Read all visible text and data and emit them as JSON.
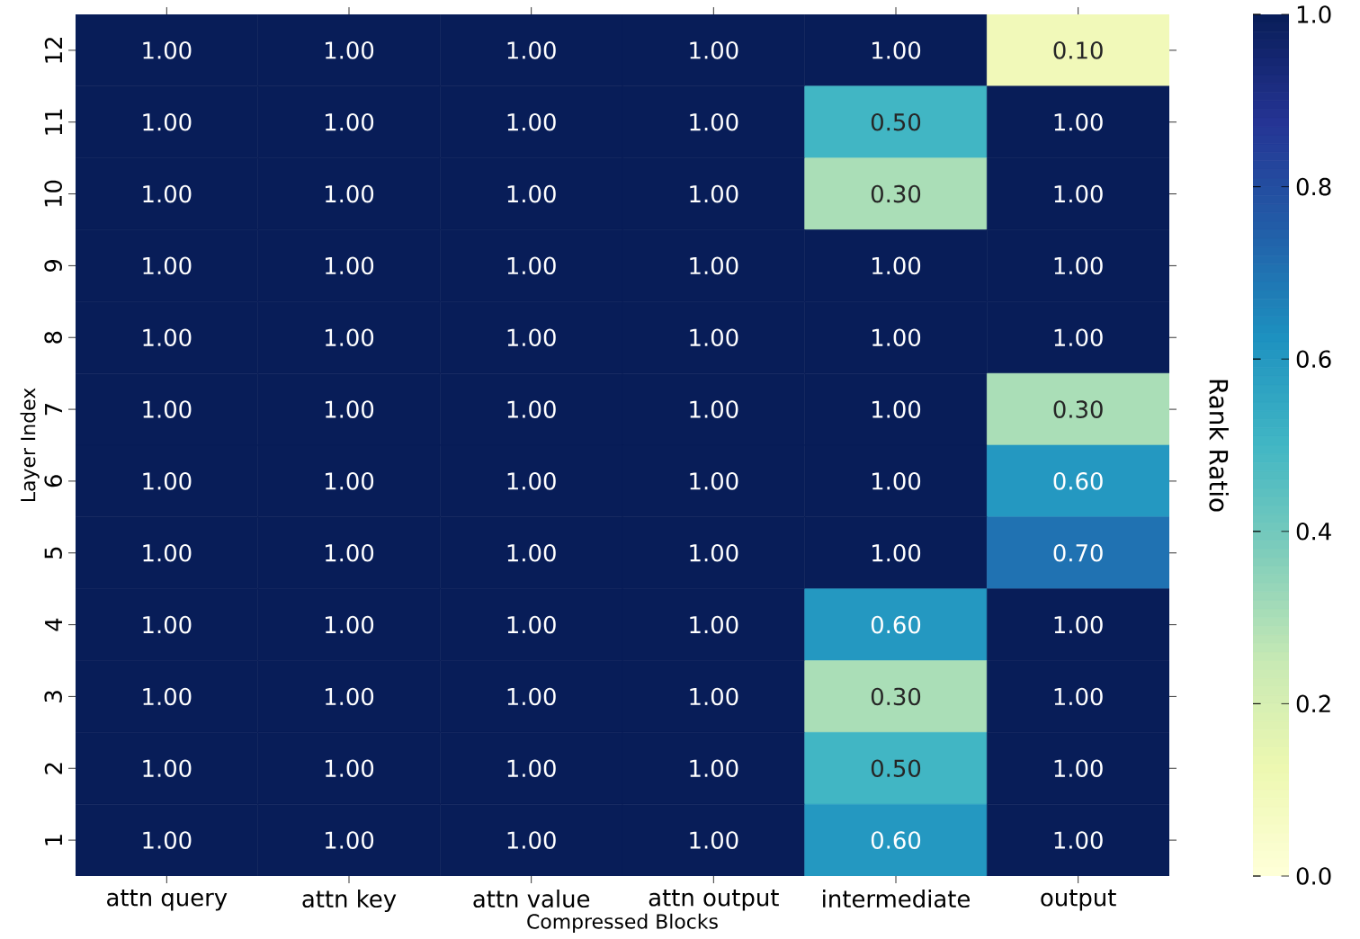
{
  "chart_data": {
    "type": "heatmap",
    "xlabel": "Compressed Blocks",
    "ylabel": "Layer Index",
    "clabel": "Rank Ratio",
    "categories": [
      "attn query",
      "attn key",
      "attn value",
      "attn output",
      "intermediate",
      "output"
    ],
    "y_categories": [
      "12",
      "11",
      "10",
      "9",
      "8",
      "7",
      "6",
      "5",
      "4",
      "3",
      "2",
      "1"
    ],
    "cells": [
      [
        1.0,
        1.0,
        1.0,
        1.0,
        1.0,
        0.1
      ],
      [
        1.0,
        1.0,
        1.0,
        1.0,
        0.5,
        1.0
      ],
      [
        1.0,
        1.0,
        1.0,
        1.0,
        0.3,
        1.0
      ],
      [
        1.0,
        1.0,
        1.0,
        1.0,
        1.0,
        1.0
      ],
      [
        1.0,
        1.0,
        1.0,
        1.0,
        1.0,
        1.0
      ],
      [
        1.0,
        1.0,
        1.0,
        1.0,
        1.0,
        0.3
      ],
      [
        1.0,
        1.0,
        1.0,
        1.0,
        1.0,
        0.6
      ],
      [
        1.0,
        1.0,
        1.0,
        1.0,
        1.0,
        0.7
      ],
      [
        1.0,
        1.0,
        1.0,
        1.0,
        0.6,
        1.0
      ],
      [
        1.0,
        1.0,
        1.0,
        1.0,
        0.3,
        1.0
      ],
      [
        1.0,
        1.0,
        1.0,
        1.0,
        0.5,
        1.0
      ],
      [
        1.0,
        1.0,
        1.0,
        1.0,
        0.6,
        1.0
      ]
    ],
    "cell_labels": [
      [
        "1.00",
        "1.00",
        "1.00",
        "1.00",
        "1.00",
        "0.10"
      ],
      [
        "1.00",
        "1.00",
        "1.00",
        "1.00",
        "0.50",
        "1.00"
      ],
      [
        "1.00",
        "1.00",
        "1.00",
        "1.00",
        "0.30",
        "1.00"
      ],
      [
        "1.00",
        "1.00",
        "1.00",
        "1.00",
        "1.00",
        "1.00"
      ],
      [
        "1.00",
        "1.00",
        "1.00",
        "1.00",
        "1.00",
        "1.00"
      ],
      [
        "1.00",
        "1.00",
        "1.00",
        "1.00",
        "1.00",
        "0.30"
      ],
      [
        "1.00",
        "1.00",
        "1.00",
        "1.00",
        "1.00",
        "0.60"
      ],
      [
        "1.00",
        "1.00",
        "1.00",
        "1.00",
        "1.00",
        "0.70"
      ],
      [
        "1.00",
        "1.00",
        "1.00",
        "1.00",
        "0.60",
        "1.00"
      ],
      [
        "1.00",
        "1.00",
        "1.00",
        "1.00",
        "0.30",
        "1.00"
      ],
      [
        "1.00",
        "1.00",
        "1.00",
        "1.00",
        "0.50",
        "1.00"
      ],
      [
        "1.00",
        "1.00",
        "1.00",
        "1.00",
        "0.60",
        "1.00"
      ]
    ],
    "clim": [
      0,
      1
    ],
    "cticks": [
      {
        "value": 0,
        "label": "0.0"
      },
      {
        "value": 0.2,
        "label": "0.2"
      },
      {
        "value": 0.4,
        "label": "0.4"
      },
      {
        "value": 0.6,
        "label": "0.6"
      },
      {
        "value": 0.8,
        "label": "0.8"
      },
      {
        "value": 1,
        "label": "1.0"
      }
    ]
  }
}
